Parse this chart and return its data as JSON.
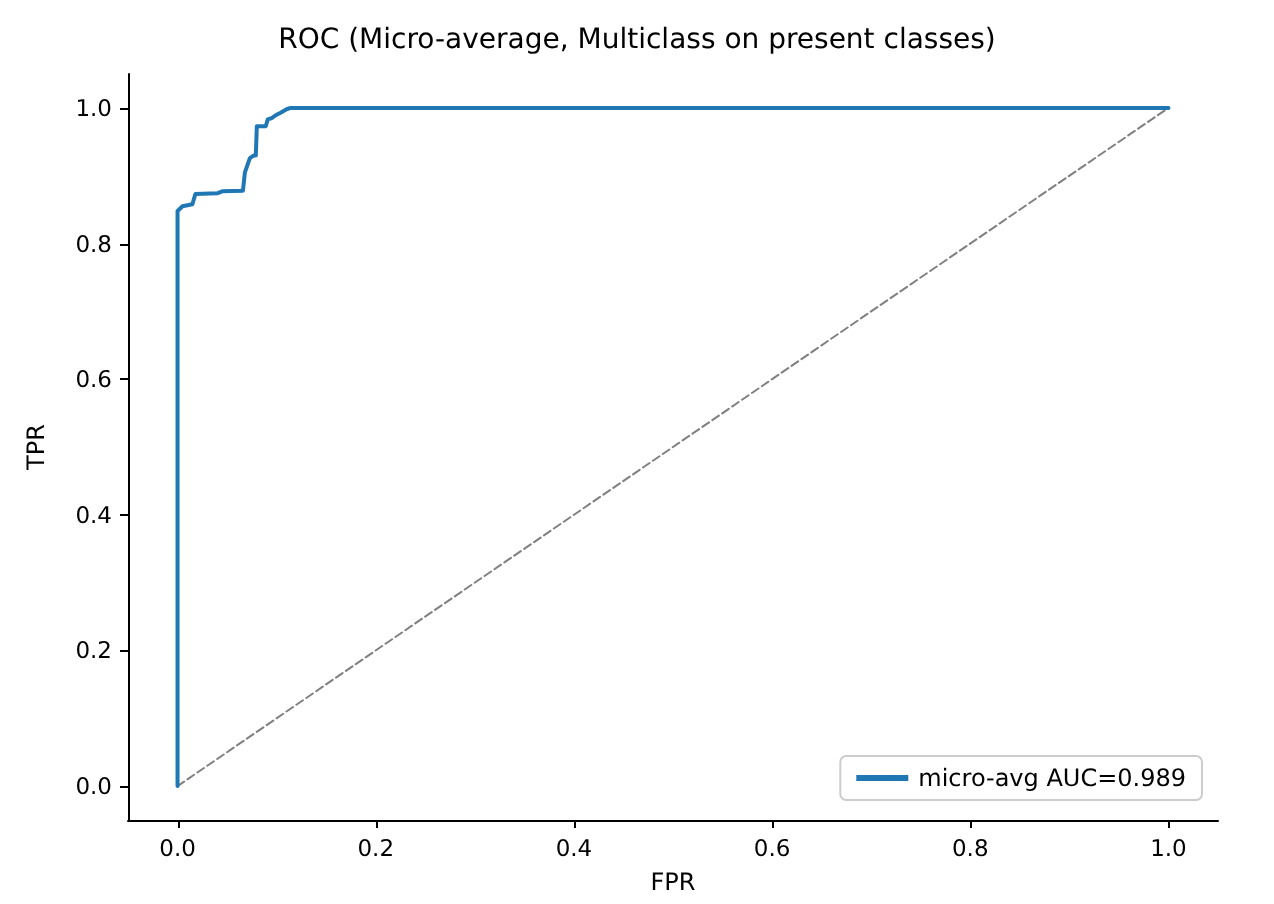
{
  "chart_data": {
    "type": "line",
    "title": "ROC (Micro-average, Multiclass on present classes)",
    "xlabel": "FPR",
    "ylabel": "TPR",
    "xlim": [
      -0.05,
      1.05
    ],
    "ylim": [
      -0.05,
      1.05
    ],
    "xticks": [
      {
        "value": 0,
        "label": "0.0"
      },
      0.2,
      0.4,
      0.6,
      0.8,
      {
        "value": 1,
        "label": "1.0"
      }
    ],
    "yticks": [
      {
        "value": 0,
        "label": "0.0"
      },
      0.2,
      0.4,
      0.6,
      0.8,
      {
        "value": 1,
        "label": "1.0"
      }
    ],
    "grid": false,
    "legend": "bottom right",
    "marker": "none",
    "series": [
      {
        "name": "micro-avg AUC=0.989",
        "color": "#1f77b4",
        "line_style": "solid",
        "x": [
          0,
          0,
          0.005,
          0.015,
          0.018,
          0.04,
          0.045,
          0.066,
          0.068,
          0.073,
          0.077,
          0.079,
          0.08,
          0.089,
          0.091,
          0.095,
          0.1,
          0.104,
          0.11,
          0.114,
          1.0
        ],
        "values": [
          0,
          0.848,
          0.855,
          0.858,
          0.873,
          0.874,
          0.877,
          0.878,
          0.905,
          0.926,
          0.93,
          0.93,
          0.973,
          0.973,
          0.983,
          0.985,
          0.99,
          0.993,
          0.998,
          1.0,
          1.0
        ]
      },
      {
        "color": "#808080",
        "line_style": "dashed",
        "x": [
          0,
          1
        ],
        "values": [
          0,
          1
        ]
      }
    ]
  }
}
